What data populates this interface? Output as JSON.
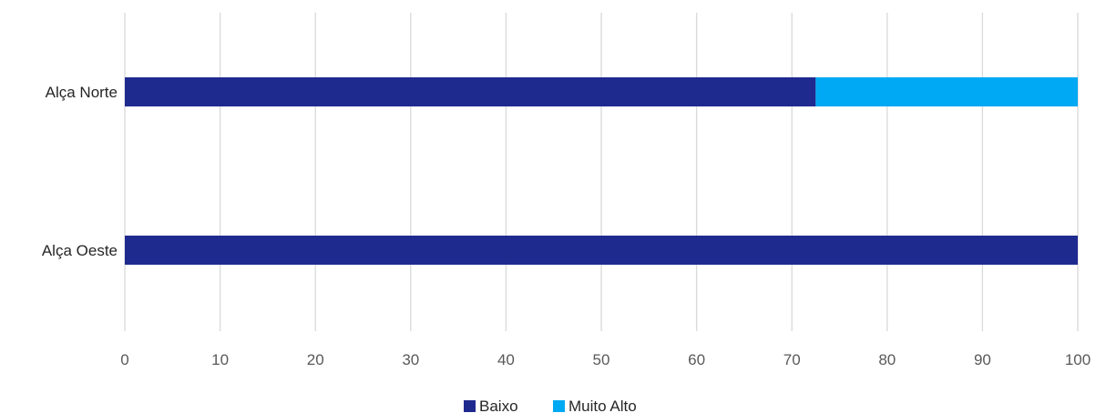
{
  "chart_data": {
    "type": "bar",
    "orientation": "horizontal",
    "stacked": true,
    "categories": [
      "Alça Norte",
      "Alça Oeste"
    ],
    "series": [
      {
        "name": "Baixo",
        "values": [
          72.5,
          100
        ],
        "color": "#1F2A8F"
      },
      {
        "name": "Muito Alto",
        "values": [
          27.5,
          0
        ],
        "color": "#00A9F4"
      }
    ],
    "xlim": [
      0,
      100
    ],
    "xticks": [
      0,
      10,
      20,
      30,
      40,
      50,
      60,
      70,
      80,
      90,
      100
    ],
    "grid": "vertical",
    "legend": "bottom"
  }
}
